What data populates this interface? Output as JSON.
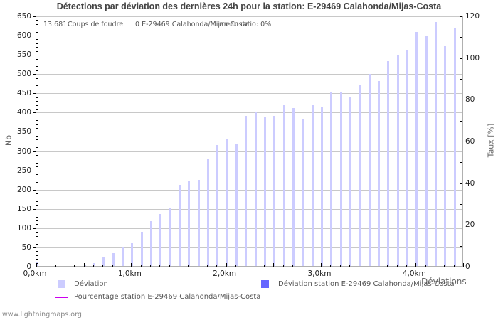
{
  "title": "Détections par déviation des dernières 24h pour la station: E-29469 Calahonda/Mijas-Costa",
  "info": {
    "count": "13.681",
    "count_label": "Coups de foudre",
    "station_count": "0 E-29469 Calahonda/Mijas-Costa",
    "mean_ratio": "mean ratio: 0%"
  },
  "axes": {
    "left_label": "Nb",
    "right_label": "Taux [%]",
    "x_label": "Déviations",
    "left_ticks": [
      0,
      50,
      100,
      150,
      200,
      250,
      300,
      350,
      400,
      450,
      500,
      550,
      600,
      650
    ],
    "right_ticks": [
      0,
      20,
      40,
      60,
      80,
      100,
      120
    ],
    "x_ticks": [
      {
        "label": "0,0km",
        "value": 0
      },
      {
        "label": "1,0km",
        "value": 1
      },
      {
        "label": "2,0km",
        "value": 2
      },
      {
        "label": "3,0km",
        "value": 3
      },
      {
        "label": "4,0km",
        "value": 4
      }
    ]
  },
  "legend": {
    "items": [
      {
        "label": "Déviation",
        "color": "#ccccff",
        "type": "box"
      },
      {
        "label": "Déviation station E-29469 Calahonda/Mijas-Costa",
        "color": "#6666ff",
        "type": "box"
      },
      {
        "label": "Pourcentage station E-29469 Calahonda/Mijas-Costa",
        "color": "#cc00ee",
        "type": "line"
      }
    ]
  },
  "footer": "www.lightningmaps.org",
  "chart_data": {
    "type": "bar",
    "title": "Détections par déviation des dernières 24h pour la station: E-29469 Calahonda/Mijas-Costa",
    "xlabel": "Déviations",
    "ylabel": "Nb",
    "y2label": "Taux [%]",
    "xlim_km": [
      0,
      4.5
    ],
    "ylim": [
      0,
      650
    ],
    "y2lim": [
      0,
      120
    ],
    "grid": true,
    "legend_position": "bottom",
    "bin_width_km": 0.1,
    "categories": [
      "0,0",
      "0,1",
      "0,2",
      "0,3",
      "0,4",
      "0,5",
      "0,6",
      "0,7",
      "0,8",
      "0,9",
      "1,0",
      "1,1",
      "1,2",
      "1,3",
      "1,4",
      "1,5",
      "1,6",
      "1,7",
      "1,8",
      "1,9",
      "2,0",
      "2,1",
      "2,2",
      "2,3",
      "2,4",
      "2,5",
      "2,6",
      "2,7",
      "2,8",
      "2,9",
      "3,0",
      "3,1",
      "3,2",
      "3,3",
      "3,4",
      "3,5",
      "3,6",
      "3,7",
      "3,8",
      "3,9",
      "4,0",
      "4,1",
      "4,2",
      "4,3",
      "4,4"
    ],
    "series": [
      {
        "name": "Déviation",
        "color": "#ccccff",
        "axis": "left",
        "values": [
          13,
          0,
          0,
          0,
          2,
          4,
          10,
          24,
          35,
          50,
          61,
          90,
          118,
          136,
          154,
          213,
          222,
          226,
          280,
          315,
          333,
          317,
          392,
          402,
          387,
          391,
          420,
          411,
          385,
          420,
          415,
          455,
          455,
          442,
          472,
          500,
          482,
          534,
          548,
          563,
          609,
          598,
          635,
          572,
          618
        ]
      },
      {
        "name": "Déviation station E-29469 Calahonda/Mijas-Costa",
        "color": "#6666ff",
        "axis": "left",
        "values": [
          0,
          0,
          0,
          0,
          0,
          0,
          0,
          0,
          0,
          0,
          0,
          0,
          0,
          0,
          0,
          0,
          0,
          0,
          0,
          0,
          0,
          0,
          0,
          0,
          0,
          0,
          0,
          0,
          0,
          0,
          0,
          0,
          0,
          0,
          0,
          0,
          0,
          0,
          0,
          0,
          0,
          0,
          0,
          0,
          0
        ]
      },
      {
        "name": "Pourcentage station E-29469 Calahonda/Mijas-Costa",
        "color": "#cc00ee",
        "axis": "right",
        "type": "line",
        "values": [
          0,
          0,
          0,
          0,
          0,
          0,
          0,
          0,
          0,
          0,
          0,
          0,
          0,
          0,
          0,
          0,
          0,
          0,
          0,
          0,
          0,
          0,
          0,
          0,
          0,
          0,
          0,
          0,
          0,
          0,
          0,
          0,
          0,
          0,
          0,
          0,
          0,
          0,
          0,
          0,
          0,
          0,
          0,
          0,
          0
        ]
      }
    ]
  }
}
